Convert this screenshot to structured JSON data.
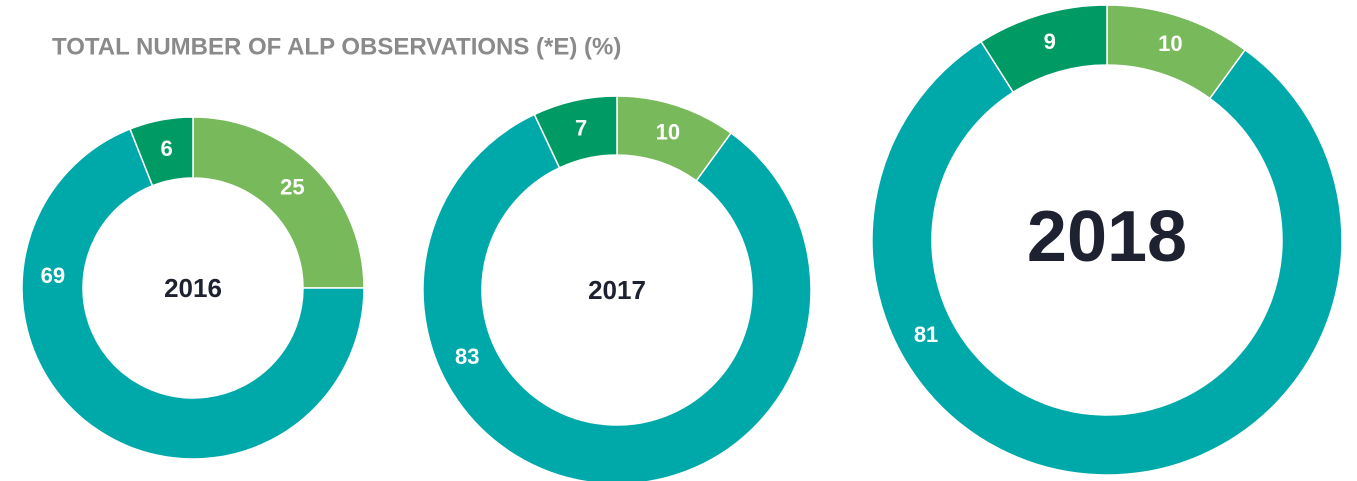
{
  "title": "TOTAL NUMBER OF ALP OBSERVATIONS (*E) (%)",
  "chart_data": [
    {
      "type": "pie",
      "title": "2016",
      "values": [
        25,
        69,
        6
      ],
      "colors": [
        "#77b95b",
        "#00a9a9",
        "#009a64"
      ]
    },
    {
      "type": "pie",
      "title": "2017",
      "values": [
        10,
        83,
        7
      ],
      "colors": [
        "#77b95b",
        "#00a9a9",
        "#009a64"
      ]
    },
    {
      "type": "pie",
      "title": "2018",
      "values": [
        10,
        81,
        9
      ],
      "colors": [
        "#77b95b",
        "#00a9a9",
        "#009a64"
      ]
    }
  ]
}
